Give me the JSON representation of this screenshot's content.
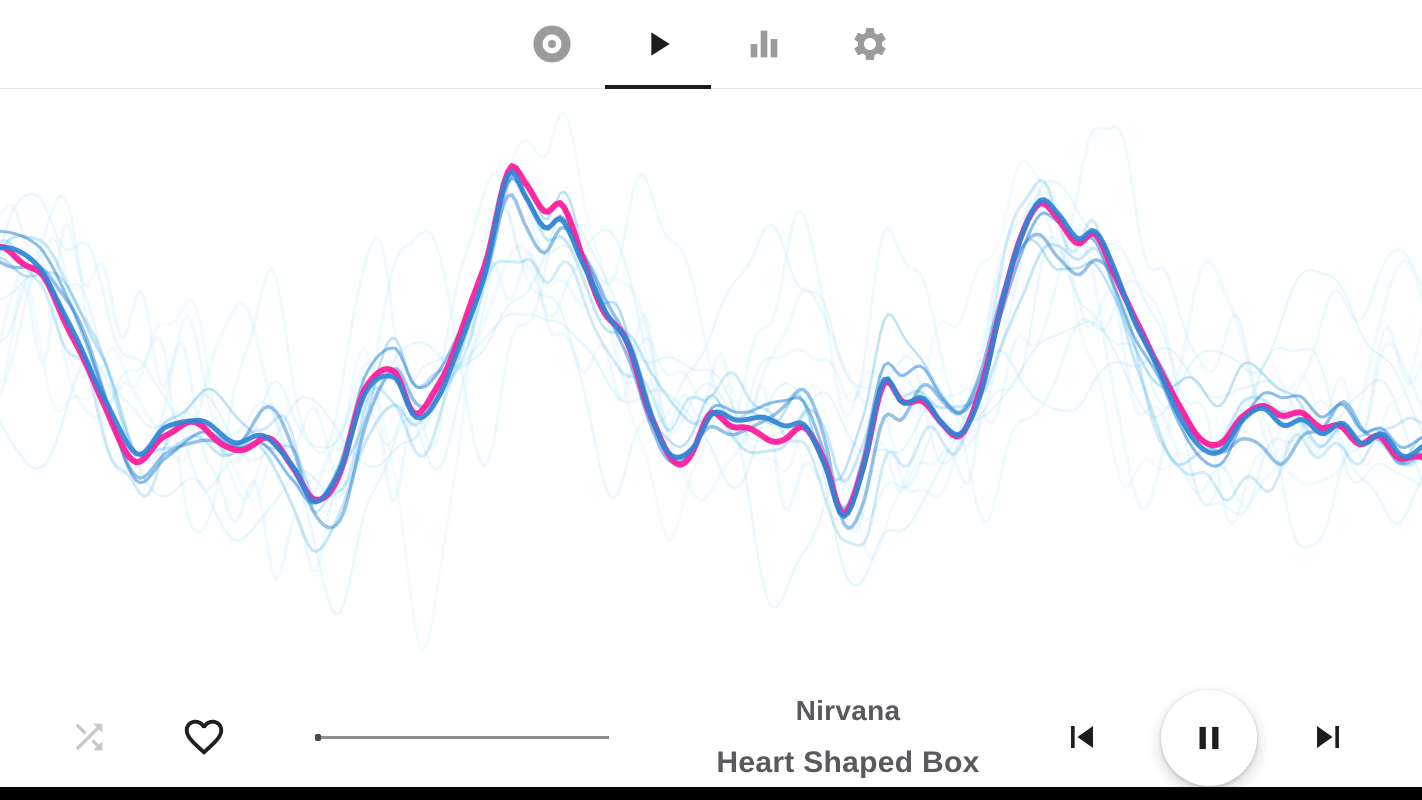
{
  "top_bar": {
    "tabs": [
      {
        "id": "library",
        "icon": "record-icon",
        "active": false
      },
      {
        "id": "player",
        "icon": "play-icon",
        "active": true
      },
      {
        "id": "visualizer",
        "icon": "equalizer-icon",
        "active": false
      },
      {
        "id": "settings",
        "icon": "gear-icon",
        "active": false
      }
    ]
  },
  "now_playing": {
    "artist": "Nirvana",
    "title": "Heart Shaped Box"
  },
  "controls": {
    "shuffle_icon": "shuffle-icon",
    "favorite_icon": "heart-outline-icon",
    "previous_icon": "skip-previous-icon",
    "play_pause_icon": "pause-icon",
    "next_icon": "skip-next-icon",
    "progress_percent": 2
  },
  "colors": {
    "accent_pink": "#FF1E9C",
    "wave_blue_main": "#2E86D6",
    "wave_blue_mid": "#4FB3EC",
    "wave_blue_light": "#70CBF6",
    "active_icon": "#1D1D1D",
    "inactive_icon": "#9B9B9B",
    "text_gray": "#595A5D"
  }
}
